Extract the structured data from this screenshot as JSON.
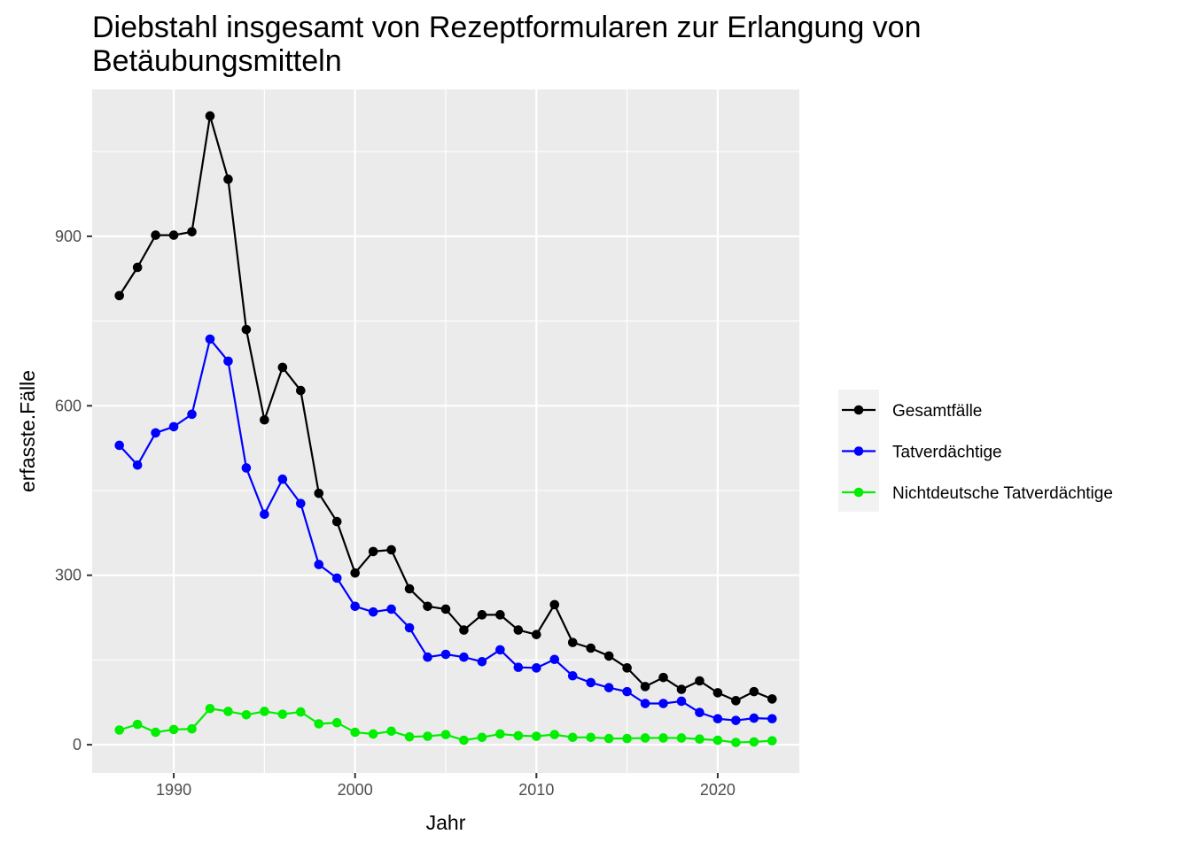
{
  "chart_data": {
    "type": "line",
    "title": "Diebstahl insgesamt von Rezeptformularen zur Erlangung von Betäubungsmitteln",
    "title_lines": [
      "Diebstahl insgesamt von Rezeptformularen zur Erlangung von",
      "Betäubungsmitteln"
    ],
    "xlabel": "Jahr",
    "ylabel": "erfasste.Fälle",
    "xlim": [
      1985.5,
      2024.5
    ],
    "ylim": [
      -50,
      1160
    ],
    "x_ticks": [
      1990,
      2000,
      2010,
      2020
    ],
    "y_ticks": [
      0,
      300,
      600,
      900
    ],
    "grid": true,
    "legend_position": "right",
    "x": [
      1987,
      1988,
      1989,
      1990,
      1991,
      1992,
      1993,
      1994,
      1995,
      1996,
      1997,
      1998,
      1999,
      2000,
      2001,
      2002,
      2003,
      2004,
      2005,
      2006,
      2007,
      2008,
      2009,
      2010,
      2011,
      2012,
      2013,
      2014,
      2015,
      2016,
      2017,
      2018,
      2019,
      2020,
      2021,
      2022,
      2023
    ],
    "series": [
      {
        "name": "Gesamtfälle",
        "color": "#000000",
        "values": [
          795,
          845,
          902,
          902,
          908,
          1113,
          1001,
          735,
          575,
          668,
          627,
          445,
          395,
          304,
          342,
          345,
          276,
          245,
          240,
          203,
          230,
          230,
          203,
          195,
          248,
          181,
          171,
          157,
          136,
          103,
          119,
          98,
          113,
          92,
          78,
          94,
          81
        ]
      },
      {
        "name": "Tatverdächtige",
        "color": "#0000ff",
        "values": [
          530,
          495,
          552,
          563,
          585,
          718,
          679,
          490,
          408,
          470,
          427,
          319,
          295,
          245,
          235,
          240,
          207,
          155,
          160,
          155,
          147,
          168,
          137,
          136,
          151,
          122,
          110,
          101,
          94,
          73,
          73,
          77,
          57,
          46,
          43,
          47,
          46
        ]
      },
      {
        "name": "Nichtdeutsche Tatverdächtige",
        "color": "#00ee00",
        "values": [
          26,
          36,
          22,
          27,
          28,
          64,
          59,
          53,
          59,
          54,
          58,
          37,
          39,
          22,
          19,
          24,
          14,
          15,
          18,
          8,
          13,
          19,
          16,
          15,
          18,
          13,
          13,
          11,
          11,
          12,
          12,
          12,
          10,
          8,
          4,
          5,
          7
        ]
      }
    ]
  }
}
